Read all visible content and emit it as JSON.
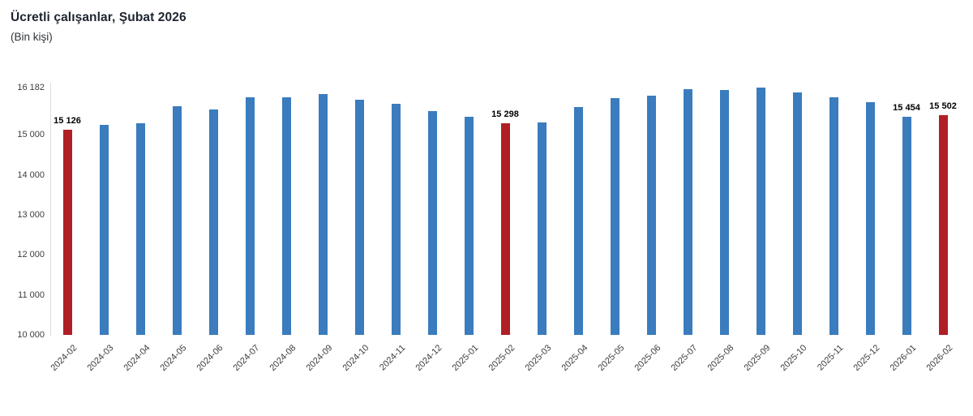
{
  "header": {
    "title": "Ücretli çalışanlar, Şubat 2026",
    "subtitle": "(Bin kişi)"
  },
  "chart_data": {
    "type": "bar",
    "title": "Ücretli çalışanlar, Şubat 2026",
    "ylabel": "Bin kişi",
    "xlabel": "",
    "grid": false,
    "legend_position": "none",
    "categories": [
      "2024-02",
      "2024-03",
      "2024-04",
      "2024-05",
      "2024-06",
      "2024-07",
      "2024-08",
      "2024-09",
      "2024-10",
      "2024-11",
      "2024-12",
      "2025-01",
      "2025-02",
      "2025-03",
      "2025-04",
      "2025-05",
      "2025-06",
      "2025-07",
      "2025-08",
      "2025-09",
      "2025-10",
      "2025-11",
      "2025-12",
      "2026-01",
      "2026-02"
    ],
    "values": [
      15126,
      15250,
      15300,
      15720,
      15625,
      15945,
      15940,
      16020,
      15880,
      15780,
      15600,
      15445,
      15298,
      15320,
      15690,
      15910,
      15980,
      16150,
      16115,
      16182,
      16070,
      15945,
      15810,
      15454,
      15502
    ],
    "value_labels": [
      "15 126",
      null,
      null,
      null,
      null,
      null,
      null,
      null,
      null,
      null,
      null,
      null,
      "15 298",
      null,
      null,
      null,
      null,
      null,
      null,
      null,
      null,
      null,
      null,
      "15 454",
      "15 502"
    ],
    "highlighted_categories": [
      "2024-02",
      "2025-02",
      "2026-02"
    ],
    "y_axis": {
      "min": 10000,
      "max": 16182,
      "ticks": [
        16182,
        15000,
        14000,
        13000,
        12000,
        11000,
        10000
      ],
      "tick_labels": [
        "16 182",
        "15 000",
        "14 000",
        "13 000",
        "12 000",
        "11 000",
        "10 000"
      ]
    },
    "colors": {
      "bar": "#3a7cbd",
      "highlight": "#b01f25",
      "axis_text": "#3d3d3d",
      "value_label_text": "#000000",
      "axis_line": "#dcdcdc"
    }
  }
}
